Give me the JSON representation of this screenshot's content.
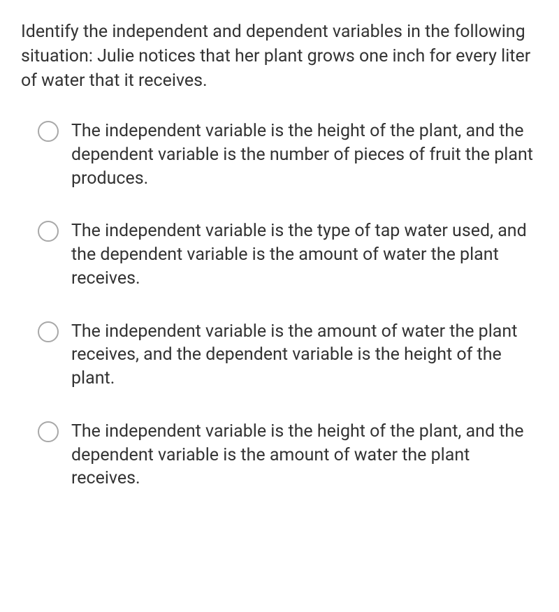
{
  "question": {
    "prompt": "Identify the independent and dependent variables in the following situation: Julie notices that her plant grows one inch for every liter of water that it receives."
  },
  "options": [
    {
      "text": "The independent variable is the height of the plant, and the dependent variable is the number of pieces of fruit the plant produces."
    },
    {
      "text": "The independent variable is the type of tap water used, and the dependent variable is the amount of water the plant receives."
    },
    {
      "text": "The independent variable is the amount of water the plant receives, and the dependent variable is the height of the plant."
    },
    {
      "text": "The independent variable is the height of the plant, and the dependent variable is the amount of water the plant receives."
    }
  ],
  "styling": {
    "text_color": "#333333",
    "background_color": "#ffffff",
    "radio_border_color": "#a8a8a8",
    "question_fontsize": 25,
    "option_fontsize": 25,
    "radio_size": 30
  }
}
